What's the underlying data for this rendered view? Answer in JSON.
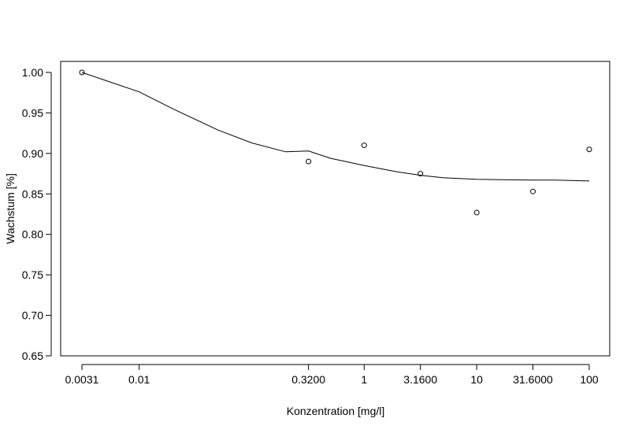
{
  "chart_data": {
    "type": "scatter",
    "title": "",
    "xlabel": "Konzentration [mg/l]",
    "ylabel": "Wachstum [%]",
    "x_scale": "log",
    "xlim": [
      0.0031,
      100
    ],
    "ylim": [
      0.65,
      1.0
    ],
    "grid": false,
    "legend": "none",
    "x_ticks": [
      {
        "value": 0.0031,
        "label": "0.0031"
      },
      {
        "value": 0.01,
        "label": "0.01"
      },
      {
        "value": 0.32,
        "label": "0.3200"
      },
      {
        "value": 1,
        "label": "1"
      },
      {
        "value": 3.16,
        "label": "3.1600"
      },
      {
        "value": 10,
        "label": "10"
      },
      {
        "value": 31.6,
        "label": "31.6000"
      },
      {
        "value": 100,
        "label": "100"
      }
    ],
    "y_ticks": [
      {
        "value": 0.65,
        "label": "0.65"
      },
      {
        "value": 0.7,
        "label": "0.70"
      },
      {
        "value": 0.75,
        "label": "0.75"
      },
      {
        "value": 0.8,
        "label": "0.80"
      },
      {
        "value": 0.85,
        "label": "0.85"
      },
      {
        "value": 0.9,
        "label": "0.90"
      },
      {
        "value": 0.95,
        "label": "0.95"
      },
      {
        "value": 1.0,
        "label": "1.00"
      }
    ],
    "points": [
      {
        "x": 0.0031,
        "y": 1.0
      },
      {
        "x": 0.32,
        "y": 0.89
      },
      {
        "x": 1,
        "y": 0.91
      },
      {
        "x": 3.16,
        "y": 0.875
      },
      {
        "x": 10,
        "y": 0.827
      },
      {
        "x": 31.6,
        "y": 0.853
      },
      {
        "x": 100,
        "y": 0.905
      }
    ],
    "fit_curve": [
      {
        "x": 0.0031,
        "y": 1.0
      },
      {
        "x": 0.01,
        "y": 0.976
      },
      {
        "x": 0.02,
        "y": 0.955
      },
      {
        "x": 0.05,
        "y": 0.929
      },
      {
        "x": 0.1,
        "y": 0.913
      },
      {
        "x": 0.2,
        "y": 0.902
      },
      {
        "x": 0.32,
        "y": 0.903
      },
      {
        "x": 0.5,
        "y": 0.894
      },
      {
        "x": 1,
        "y": 0.885
      },
      {
        "x": 2,
        "y": 0.877
      },
      {
        "x": 3.16,
        "y": 0.873
      },
      {
        "x": 5,
        "y": 0.87
      },
      {
        "x": 10,
        "y": 0.868
      },
      {
        "x": 31.6,
        "y": 0.867
      },
      {
        "x": 50,
        "y": 0.867
      },
      {
        "x": 100,
        "y": 0.866
      }
    ],
    "point_color": "#000000",
    "line_color": "#000000"
  }
}
